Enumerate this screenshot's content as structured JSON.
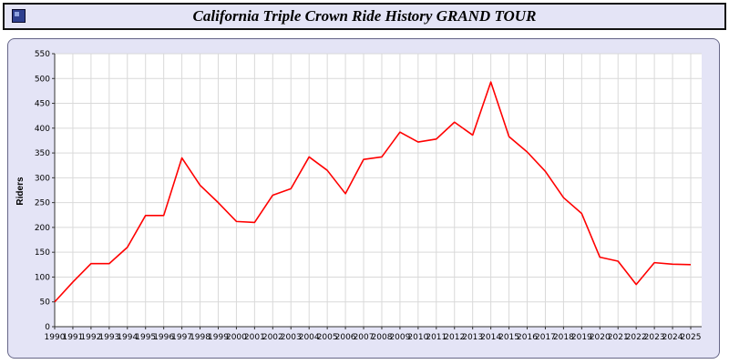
{
  "window": {
    "title": "California Triple Crown Ride History GRAND TOUR"
  },
  "chart_data": {
    "type": "line",
    "title": "California Triple Crown Ride History GRAND TOUR",
    "xlabel": "",
    "ylabel": "Riders",
    "ylim": [
      0,
      550
    ],
    "ytick_step": 50,
    "grid": true,
    "legend": "none",
    "plot_bg": "#ffffff",
    "grid_color": "#d9d9d9",
    "axis_color": "#333333",
    "categories": [
      "1990",
      "1991",
      "1992",
      "1993",
      "1994",
      "1995",
      "1996",
      "1997",
      "1998",
      "1999",
      "2000",
      "2001",
      "2002",
      "2003",
      "2004",
      "2005",
      "2006",
      "2007",
      "2008",
      "2009",
      "2010",
      "2011",
      "2012",
      "2013",
      "2014",
      "2015",
      "2016",
      "2017",
      "2018",
      "2019",
      "2020",
      "2021",
      "2022",
      "2023",
      "2024",
      "2025"
    ],
    "series": [
      {
        "name": "Riders",
        "color": "#ff0000",
        "values": [
          50,
          90,
          127,
          127,
          160,
          224,
          224,
          340,
          285,
          250,
          212,
          210,
          265,
          278,
          342,
          315,
          268,
          337,
          342,
          392,
          372,
          378,
          412,
          386,
          493,
          383,
          352,
          313,
          260,
          228,
          140,
          132,
          85,
          129,
          126,
          125
        ]
      }
    ]
  }
}
